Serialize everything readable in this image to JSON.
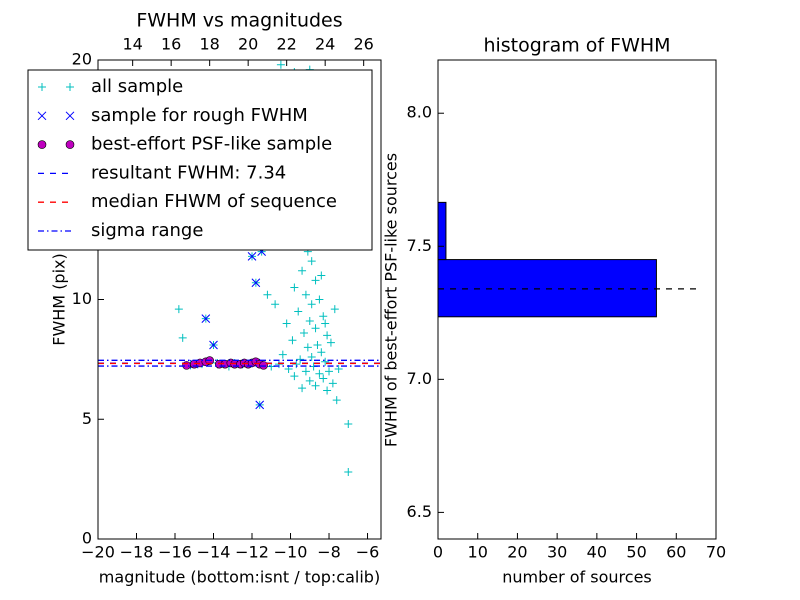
{
  "chart_data": [
    {
      "type": "scatter",
      "title": "FWHM vs magnitudes",
      "xlabel": "magnitude (bottom:isnt / top:calib)",
      "ylabel": "FWHM (pix)",
      "xlim": [
        -20,
        -5.3
      ],
      "xticks": [
        {
          "value": -20,
          "label": "−20"
        },
        {
          "value": -18,
          "label": "−18"
        },
        {
          "value": -16,
          "label": "−16"
        },
        {
          "value": -14,
          "label": "−14"
        },
        {
          "value": -12,
          "label": "−12"
        },
        {
          "value": -10,
          "label": "−10"
        },
        {
          "value": -8,
          "label": "−8"
        },
        {
          "value": -6,
          "label": "−6"
        }
      ],
      "x2lim": [
        12.2,
        26.9
      ],
      "x2ticks": [
        14,
        16,
        18,
        20,
        22,
        24,
        26
      ],
      "ylim": [
        0,
        20
      ],
      "yticks": [
        0,
        5,
        10,
        15,
        20
      ],
      "legend": "upper left",
      "series": [
        {
          "name": "all sample",
          "color": "#00bfbf",
          "marker": "+",
          "x": [
            -15.8,
            -15.6,
            -14.4,
            -14,
            -11.6,
            -12,
            -11.5,
            -11.8,
            -11.2,
            -10.8,
            -7,
            -7,
            -10.5,
            -9.8,
            -9,
            -8.6,
            -10.2,
            -10.8,
            -9.6,
            -9.2,
            -8.8,
            -9.5,
            -10,
            -9.1,
            -8.9,
            -9.4,
            -8.7,
            -9.8,
            -9.2,
            -8.5,
            -8.9,
            -9.6,
            -8.3,
            -9,
            -10.2,
            -8.7,
            -9.3,
            -8.1,
            -9.9,
            -8.6,
            -9.1,
            -8.4,
            -10.4,
            -8.9,
            -9.5,
            -8.2,
            -9.7,
            -8.8,
            -10.1,
            -9.2,
            -8.5,
            -9.8,
            -8.3,
            -9,
            -8.7,
            -9.4,
            -8.1,
            -7.8,
            -7.6,
            -8,
            -7.9,
            -8.2,
            -7.7,
            -8.4,
            -8.1,
            -8.3,
            -8.6,
            -8.2,
            -8.8,
            -9.4,
            -7.5,
            -10.6,
            -11,
            -12.5,
            -13.2,
            -13.8,
            -14.6,
            -15.2,
            -11.8,
            -12.9
          ],
          "y": [
            9.6,
            8.4,
            9.2,
            8.1,
            5.6,
            11.8,
            12,
            10.7,
            10.2,
            9.8,
            4.8,
            2.8,
            19.8,
            19.5,
            19.6,
            19,
            17.5,
            16,
            15,
            14,
            13.5,
            13,
            12.5,
            12,
            11.6,
            11.2,
            10.8,
            10.5,
            10.2,
            10,
            9.8,
            9.5,
            9.3,
            9.1,
            9,
            8.8,
            8.6,
            8.5,
            8.3,
            8.1,
            8,
            7.8,
            7.7,
            7.6,
            7.5,
            7.4,
            7.3,
            7.2,
            7.1,
            7,
            6.9,
            6.8,
            6.7,
            6.6,
            6.4,
            6.3,
            6.2,
            6.5,
            5.8,
            7,
            8.2,
            9,
            9.6,
            11,
            12.4,
            13.8,
            15.5,
            16.8,
            17.9,
            16.5,
            7.1,
            7.3,
            7.2,
            7.3,
            7.2,
            7.35,
            7.3,
            7.25,
            7.4,
            7.35
          ]
        },
        {
          "name": "sample for rough FWHM",
          "color": "#0000ff",
          "marker": "x",
          "x": [
            -14.4,
            -14,
            -11.6,
            -12,
            -11.5,
            -11.8,
            -13.6,
            -12.7,
            -11.8,
            -15
          ],
          "y": [
            9.2,
            8.1,
            5.6,
            11.8,
            12,
            10.7,
            7.3,
            7.3,
            7.35,
            7.3
          ]
        },
        {
          "name": "best-effort PSF-like sample",
          "color": "#bf00bf",
          "marker": "o",
          "x": [
            -15.4,
            -15,
            -14.7,
            -14.4,
            -14.2,
            -13.7,
            -13.4,
            -13.1,
            -12.9,
            -12.6,
            -12.4,
            -12.2,
            -12,
            -11.8,
            -11.6,
            -11.4
          ],
          "y": [
            7.25,
            7.3,
            7.35,
            7.4,
            7.45,
            7.3,
            7.3,
            7.35,
            7.3,
            7.3,
            7.35,
            7.3,
            7.35,
            7.4,
            7.3,
            7.25
          ]
        },
        {
          "name": "resultant FWHM: 7.34",
          "color": "#0000ff",
          "linestyle": "--",
          "hlines": [
            7.34
          ]
        },
        {
          "name": "median FHWM of sequence",
          "color": "#ff0000",
          "linestyle": "--",
          "hlines": [
            7.33
          ]
        },
        {
          "name": "sigma range",
          "color": "#0000ff",
          "linestyle": "-.",
          "hlines": [
            7.22,
            7.46
          ]
        }
      ]
    },
    {
      "type": "histogram",
      "orientation": "horizontal",
      "title": "histogram of FWHM",
      "xlabel": "number of sources",
      "ylabel": "FWHM of best-effort PSF-like sources",
      "bins": [
        7.235,
        7.45,
        7.665
      ],
      "counts": [
        55,
        2
      ],
      "color": "#0000ff",
      "xlim": [
        0,
        70
      ],
      "xticks": [
        0,
        10,
        20,
        30,
        40,
        50,
        60,
        70
      ],
      "ylim": [
        6.4,
        8.2
      ],
      "yticks": [
        6.5,
        {
          "value": 7,
          "label": "7.0"
        },
        7.5,
        {
          "value": 8,
          "label": "8.0"
        }
      ],
      "reference_line": {
        "y": 7.34,
        "x": [
          0,
          65
        ],
        "color": "#000000",
        "linestyle": "--"
      }
    }
  ]
}
